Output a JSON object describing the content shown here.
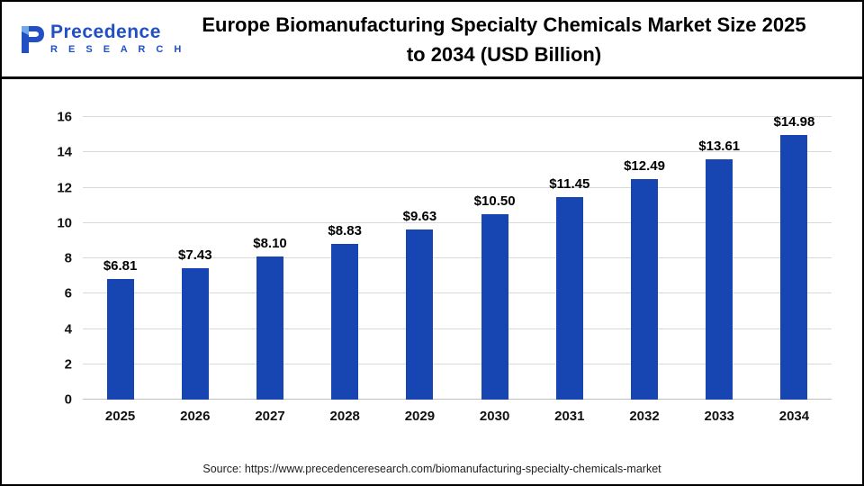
{
  "header": {
    "logo_name": "Precedence",
    "logo_sub": "R E S E A R C H",
    "title": "Europe Biomanufacturing Specialty Chemicals Market Size 2025 to 2034 (USD Billion)"
  },
  "chart_data": {
    "type": "bar",
    "title": "Europe Biomanufacturing Specialty Chemicals Market Size 2025 to 2034 (USD Billion)",
    "categories": [
      "2025",
      "2026",
      "2027",
      "2028",
      "2029",
      "2030",
      "2031",
      "2032",
      "2033",
      "2034"
    ],
    "values": [
      6.81,
      7.43,
      8.1,
      8.83,
      9.63,
      10.5,
      11.45,
      12.49,
      13.61,
      14.98
    ],
    "value_labels": [
      "$6.81",
      "$7.43",
      "$8.10",
      "$8.83",
      "$9.63",
      "$10.50",
      "$11.45",
      "$12.49",
      "$13.61",
      "$14.98"
    ],
    "xlabel": "",
    "ylabel": "",
    "ylim": [
      0,
      16
    ],
    "ytick_step": 2,
    "grid": "on",
    "legend": "none",
    "bar_color": "#1745b2"
  },
  "footer": {
    "source": "Source: https://www.precedenceresearch.com/biomanufacturing-specialty-chemicals-market"
  },
  "colors": {
    "bar": "#1745b2",
    "logo_blue": "#2250c4",
    "gridline": "#d9d9d9",
    "title_text": "#000000"
  }
}
